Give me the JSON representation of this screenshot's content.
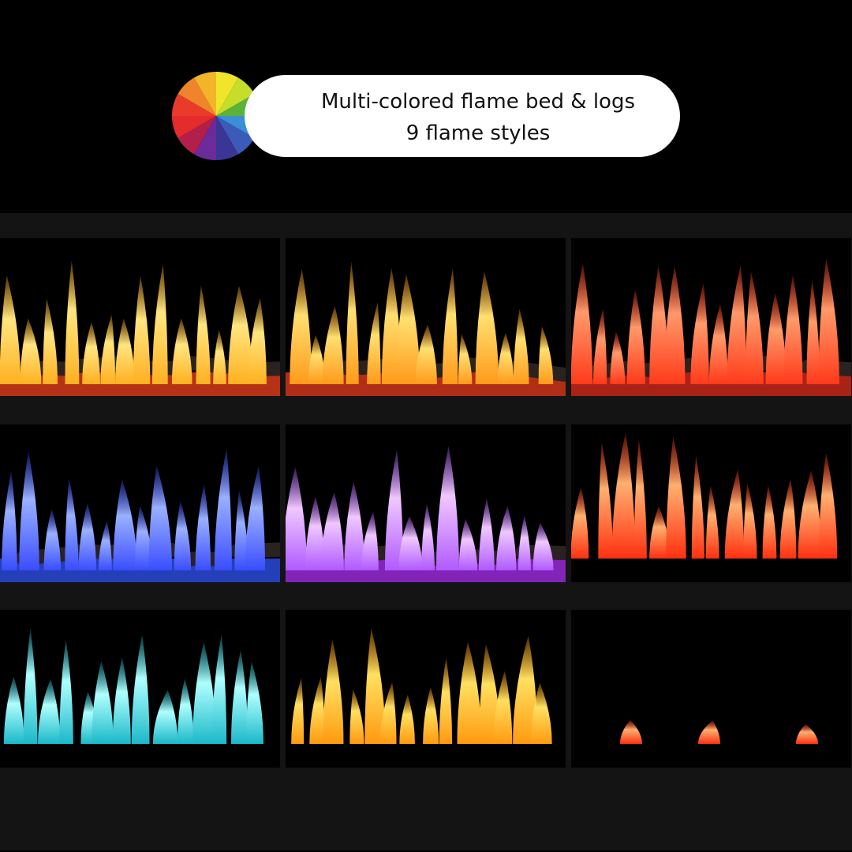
{
  "banner": {
    "line1": "Multi-colored flame bed & logs",
    "line2": "9  flame styles",
    "wheel_colors": [
      "#f1e52b",
      "#c6dd2a",
      "#5bb23a",
      "#3a8fd6",
      "#3a5bb8",
      "#3b3596",
      "#6c2b9a",
      "#b21f4a",
      "#e52b2b",
      "#ea3b2a",
      "#f0842a",
      "#f2b52a"
    ]
  },
  "flame_styles": [
    {
      "name": "orange-flame-red-bed",
      "flame": "#ffb020",
      "tip": "#ffe680",
      "bed": "#d6391a",
      "logs": true
    },
    {
      "name": "orange-flame-red-bed-2",
      "flame": "#ff9a1a",
      "tip": "#ffe070",
      "bed": "#d0361a",
      "logs": true
    },
    {
      "name": "red-flame-red-bed",
      "flame": "#ff3a1a",
      "tip": "#ff9a6a",
      "bed": "#c8281a",
      "logs": true
    },
    {
      "name": "blue-flame-blue-bed",
      "flame": "#3a4dff",
      "tip": "#9ab0ff",
      "bed": "#2a4ad8",
      "logs": true
    },
    {
      "name": "purple-flame-purple-bed",
      "flame": "#b05aff",
      "tip": "#f0c8ff",
      "bed": "#9a2ad8",
      "logs": true
    },
    {
      "name": "red-flame",
      "flame": "#ff3010",
      "tip": "#ffb070",
      "bed": "#000000",
      "logs": false
    },
    {
      "name": "teal-flame",
      "flame": "#1ab8c8",
      "tip": "#b0ffff",
      "bed": "#000000",
      "logs": false
    },
    {
      "name": "amber-flame",
      "flame": "#ff9a10",
      "tip": "#ffe060",
      "bed": "#000000",
      "logs": false
    },
    {
      "name": "low-red-flame",
      "flame": "#ff3010",
      "tip": "#ffb070",
      "bed": "#000000",
      "logs": false,
      "low": true
    }
  ]
}
